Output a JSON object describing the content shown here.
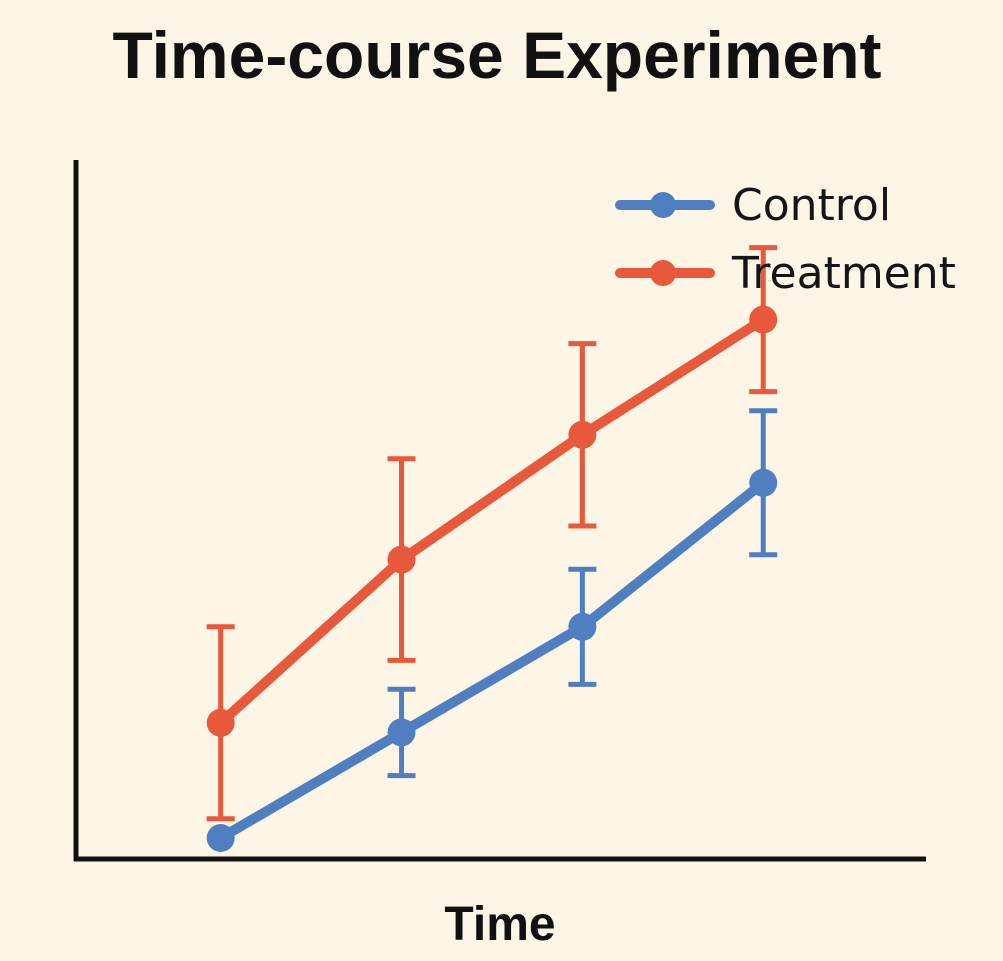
{
  "chart_data": {
    "type": "line",
    "title": "Time-course Experiment",
    "xlabel": "Time",
    "ylabel": "",
    "x": [
      1,
      2,
      3,
      4
    ],
    "xlim": [
      0.2,
      4.9
    ],
    "ylim": [
      0,
      10
    ],
    "grid": false,
    "legend": {
      "placement": "top-right"
    },
    "series": [
      {
        "name": "Control",
        "color": "#4f7fc1",
        "values": [
          1.0,
          2.1,
          3.2,
          4.7
        ],
        "errors": [
          0.0,
          0.45,
          0.6,
          0.75
        ]
      },
      {
        "name": "Treatment",
        "color": "#e8583a",
        "values": [
          2.2,
          3.9,
          5.2,
          6.4
        ],
        "errors": [
          1.0,
          1.05,
          0.95,
          0.75
        ]
      }
    ]
  }
}
